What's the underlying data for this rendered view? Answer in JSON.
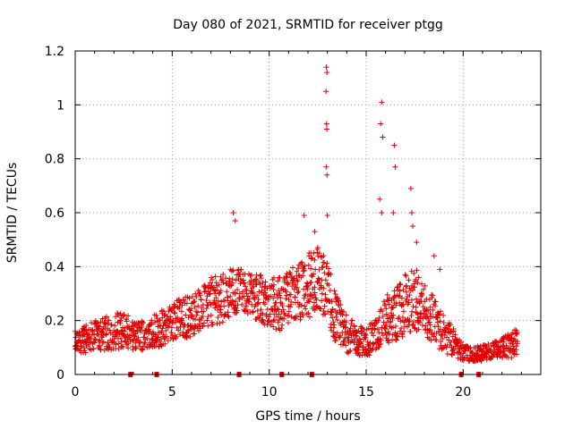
{
  "chart_data": {
    "type": "scatter",
    "title": "Day 080 of 2021, SRMTID for receiver ptgg",
    "xlabel": "GPS time / hours",
    "ylabel": "SRMTID / TECUs",
    "xlim": [
      0,
      24
    ],
    "ylim": [
      0,
      1.2
    ],
    "xticks": [
      0,
      5,
      10,
      15,
      20
    ],
    "xtick_labels": [
      "0",
      "5",
      "10",
      "15",
      "20"
    ],
    "yticks": [
      0,
      0.2,
      0.4,
      0.6,
      0.8,
      1,
      1.2
    ],
    "ytick_labels": [
      "0",
      "0.2",
      "0.4",
      "0.6",
      "0.8",
      "1",
      "1.2"
    ],
    "grid": true,
    "marker": "+",
    "color": "#e00000",
    "series": [
      {
        "name": "SRMTID",
        "envelope": {
          "x": [
            0,
            0.5,
            1,
            1.5,
            2,
            2.5,
            3,
            3.5,
            4,
            4.5,
            5,
            5.5,
            6,
            6.5,
            7,
            7.5,
            8,
            8.5,
            9,
            9.5,
            10,
            10.5,
            11,
            11.5,
            12,
            12.5,
            13,
            13.5,
            14,
            14.5,
            15,
            15.5,
            16,
            16.5,
            17,
            17.5,
            18,
            18.5,
            19,
            19.5,
            20,
            20.5,
            21,
            21.5,
            22,
            22.5,
            22.8
          ],
          "y_mid": [
            0.12,
            0.13,
            0.14,
            0.15,
            0.16,
            0.17,
            0.14,
            0.15,
            0.16,
            0.17,
            0.2,
            0.21,
            0.22,
            0.24,
            0.27,
            0.28,
            0.3,
            0.32,
            0.3,
            0.28,
            0.27,
            0.26,
            0.29,
            0.3,
            0.33,
            0.36,
            0.3,
            0.2,
            0.15,
            0.13,
            0.12,
            0.14,
            0.2,
            0.22,
            0.25,
            0.28,
            0.24,
            0.2,
            0.15,
            0.12,
            0.08,
            0.07,
            0.08,
            0.09,
            0.1,
            0.11,
            0.12
          ],
          "y_spread": [
            0.04,
            0.05,
            0.06,
            0.06,
            0.07,
            0.07,
            0.05,
            0.06,
            0.06,
            0.07,
            0.07,
            0.08,
            0.08,
            0.08,
            0.09,
            0.09,
            0.09,
            0.08,
            0.08,
            0.09,
            0.09,
            0.1,
            0.1,
            0.11,
            0.12,
            0.13,
            0.12,
            0.09,
            0.07,
            0.06,
            0.05,
            0.07,
            0.09,
            0.1,
            0.12,
            0.12,
            0.1,
            0.09,
            0.07,
            0.05,
            0.03,
            0.03,
            0.03,
            0.03,
            0.04,
            0.05,
            0.05
          ]
        },
        "peaks": [
          {
            "x": 8.15,
            "y": 0.6
          },
          {
            "x": 8.25,
            "y": 0.57
          },
          {
            "x": 11.8,
            "y": 0.59
          },
          {
            "x": 12.35,
            "y": 0.53
          },
          {
            "x": 12.95,
            "y": 1.14
          },
          {
            "x": 12.98,
            "y": 1.12
          },
          {
            "x": 12.93,
            "y": 1.05
          },
          {
            "x": 12.96,
            "y": 0.93
          },
          {
            "x": 12.97,
            "y": 0.91
          },
          {
            "x": 12.94,
            "y": 0.77
          },
          {
            "x": 12.98,
            "y": 0.74
          },
          {
            "x": 13.0,
            "y": 0.59
          },
          {
            "x": 15.8,
            "y": 1.01
          },
          {
            "x": 15.75,
            "y": 0.93
          },
          {
            "x": 15.85,
            "y": 0.88
          },
          {
            "x": 15.7,
            "y": 0.65
          },
          {
            "x": 15.8,
            "y": 0.6
          },
          {
            "x": 16.45,
            "y": 0.85
          },
          {
            "x": 16.5,
            "y": 0.77
          },
          {
            "x": 16.4,
            "y": 0.6
          },
          {
            "x": 17.3,
            "y": 0.69
          },
          {
            "x": 17.35,
            "y": 0.6
          },
          {
            "x": 17.4,
            "y": 0.55
          },
          {
            "x": 17.6,
            "y": 0.49
          },
          {
            "x": 18.5,
            "y": 0.44
          },
          {
            "x": 18.8,
            "y": 0.39
          }
        ]
      }
    ],
    "gap_markers_x": [
      2.85,
      4.2,
      8.45,
      10.65,
      12.2,
      19.9,
      20.8
    ]
  }
}
